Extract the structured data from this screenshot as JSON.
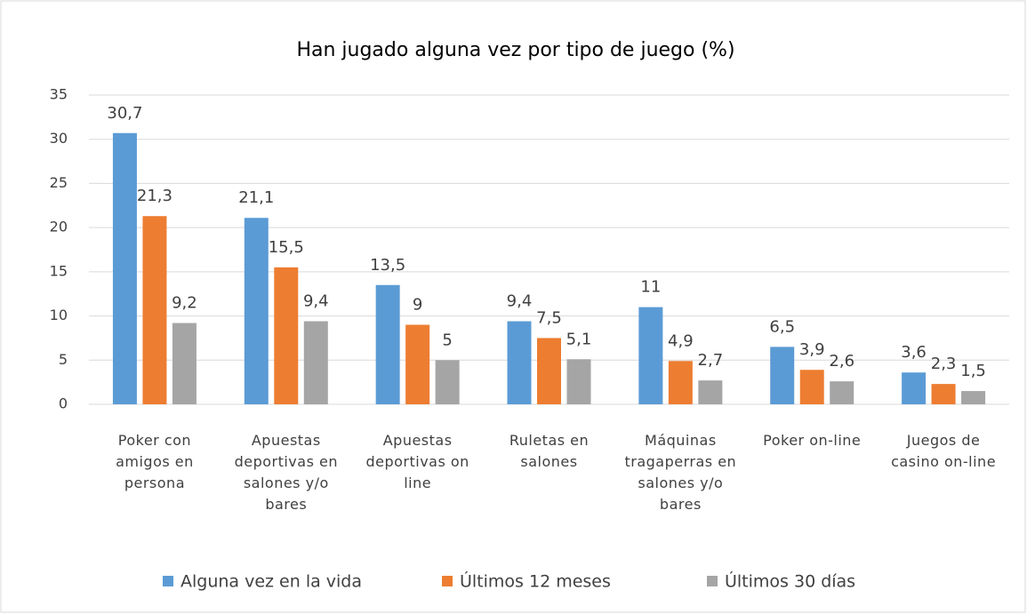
{
  "chart_data": {
    "type": "bar",
    "title": "Han jugado alguna vez por tipo de juego (%)",
    "categories": [
      "Poker con amigos en persona",
      "Apuestas deportivas en salones y/o bares",
      "Apuestas deportivas on line",
      "Ruletas en salones",
      "Máquinas tragaperras en salones y/o bares",
      "Poker on-line",
      "Juegos de casino on-line"
    ],
    "series": [
      {
        "name": "Alguna vez en la vida",
        "color": "#5b9bd5",
        "values": [
          30.7,
          21.1,
          13.5,
          9.4,
          11,
          6.5,
          3.6
        ],
        "value_labels": [
          "30,7",
          "21,1",
          "13,5",
          "9,4",
          "11",
          "6,5",
          "3,6"
        ]
      },
      {
        "name": "Últimos 12 meses",
        "color": "#ed7d31",
        "values": [
          21.3,
          15.5,
          9,
          7.5,
          4.9,
          3.9,
          2.3
        ],
        "value_labels": [
          "21,3",
          "15,5",
          "9",
          "7,5",
          "4,9",
          "3,9",
          "2,3"
        ]
      },
      {
        "name": "Últimos 30 días",
        "color": "#a5a5a5",
        "values": [
          9.2,
          9.4,
          5,
          5.1,
          2.7,
          2.6,
          1.5
        ],
        "value_labels": [
          "9,2",
          "9,4",
          "5",
          "5,1",
          "2,7",
          "2,6",
          "1,5"
        ]
      }
    ],
    "ylim": [
      0,
      35
    ],
    "yticks": [
      0,
      5,
      10,
      15,
      20,
      25,
      30,
      35
    ],
    "grid": true,
    "legend": "bottom"
  }
}
